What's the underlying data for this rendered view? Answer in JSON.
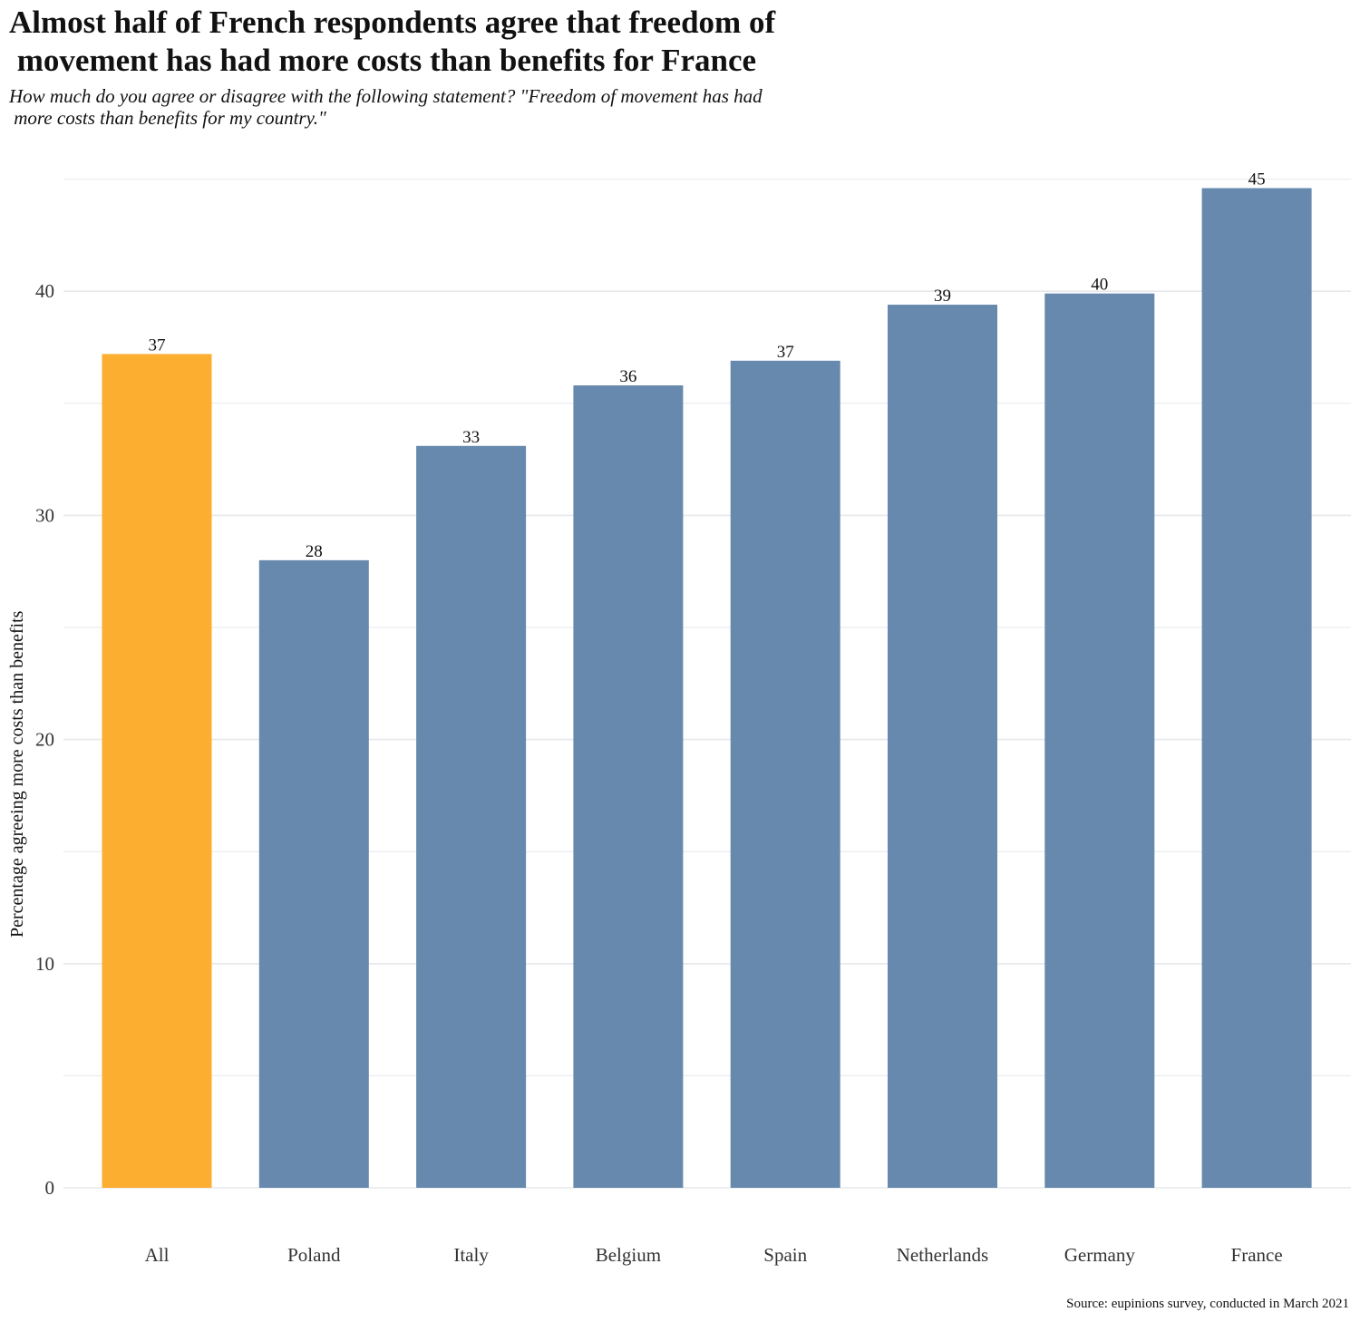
{
  "chart_data": {
    "type": "bar",
    "title_lines": [
      "Almost half of French respondents agree that freedom of",
      " movement has had more costs than benefits for France"
    ],
    "subtitle_lines": [
      "How much do you agree or disagree with the following statement? \"Freedom of movement has had",
      " more costs than benefits for my country.\""
    ],
    "categories": [
      "All",
      "Poland",
      "Italy",
      "Belgium",
      "Spain",
      "Netherlands",
      "Germany",
      "France"
    ],
    "values": [
      37.2,
      28.0,
      33.1,
      35.8,
      36.9,
      39.4,
      39.9,
      44.6
    ],
    "labels": [
      "37",
      "28",
      "33",
      "36",
      "37",
      "39",
      "40",
      "45"
    ],
    "highlight_category": "All",
    "colors": {
      "highlight": "#FBAE30",
      "default": "#6689AD",
      "grid": "#E6E8EC"
    },
    "xlabel": "",
    "ylabel": "Percentage agreeing more costs than benefits",
    "ylim": [
      0,
      45
    ],
    "yticks": [
      0,
      10,
      20,
      30,
      40
    ],
    "grid": true,
    "source": "Source: eupinions survey, conducted in March 2021"
  }
}
